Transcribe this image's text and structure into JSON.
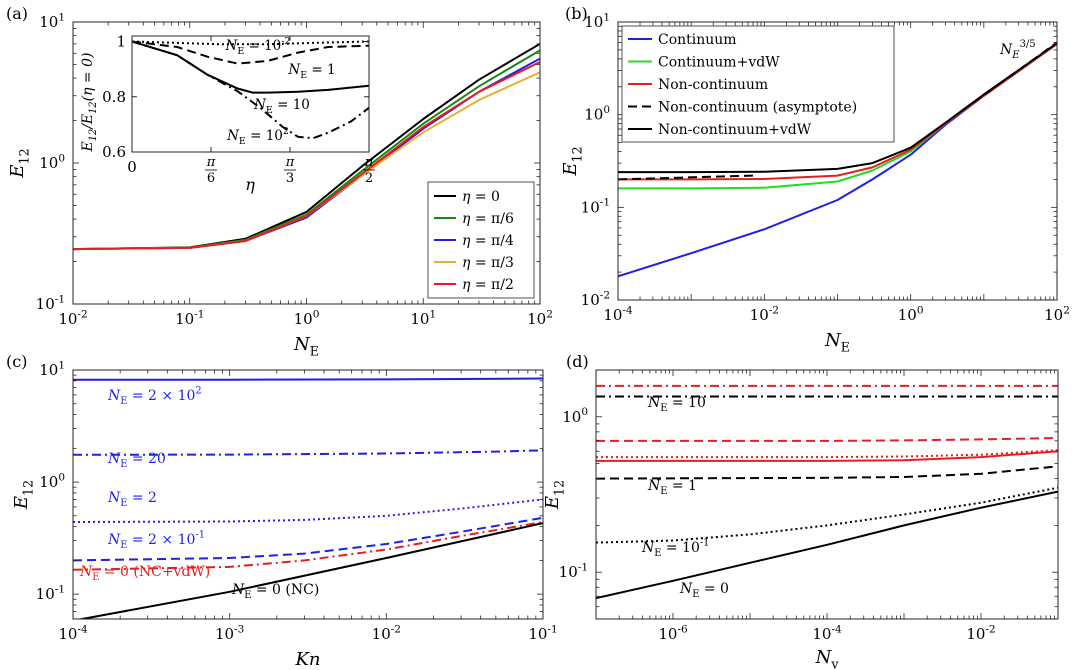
{
  "chart_data": [
    {
      "panel": "(a)",
      "type": "line",
      "xlabel": "N_E",
      "ylabel": "E_12",
      "xscale": "log",
      "yscale": "log",
      "xlim": [
        0.01,
        100
      ],
      "ylim": [
        0.1,
        10
      ],
      "xticks": [
        "10^-2",
        "10^-1",
        "10^0",
        "10^1",
        "10^2"
      ],
      "yticks": [
        "10^-1",
        "10^0",
        "10^1"
      ],
      "legend_position": "bottom-right",
      "series": [
        {
          "name": "η = 0",
          "color": "#000000",
          "style": "solid",
          "x": [
            0.01,
            0.1,
            0.3,
            1,
            3,
            10,
            30,
            100
          ],
          "y": [
            0.245,
            0.252,
            0.29,
            0.45,
            0.95,
            2.05,
            3.9,
            7.0
          ]
        },
        {
          "name": "η = π/6",
          "color": "#138a13",
          "style": "solid",
          "x": [
            0.01,
            0.1,
            0.3,
            1,
            3,
            10,
            30,
            100
          ],
          "y": [
            0.245,
            0.251,
            0.285,
            0.43,
            0.88,
            1.9,
            3.5,
            6.3
          ]
        },
        {
          "name": "η = π/4",
          "color": "#1f1fe8",
          "style": "solid",
          "x": [
            0.01,
            0.1,
            0.3,
            1,
            3,
            10,
            30,
            100
          ],
          "y": [
            0.245,
            0.25,
            0.28,
            0.41,
            0.82,
            1.75,
            3.2,
            5.5
          ]
        },
        {
          "name": "η = π/3",
          "color": "#e8b030",
          "style": "solid",
          "x": [
            0.01,
            0.1,
            0.3,
            1,
            3,
            10,
            30,
            100
          ],
          "y": [
            0.245,
            0.25,
            0.28,
            0.42,
            0.82,
            1.65,
            2.8,
            4.4
          ]
        },
        {
          "name": "η = π/2",
          "color": "#e81e1e",
          "style": "solid",
          "x": [
            0.01,
            0.1,
            0.3,
            1,
            3,
            10,
            30,
            100
          ],
          "y": [
            0.245,
            0.25,
            0.28,
            0.42,
            0.84,
            1.8,
            3.2,
            5.2
          ]
        }
      ],
      "inset": {
        "xlabel": "η",
        "ylabel": "E_12/E_12(η = 0)",
        "xlim": [
          0,
          1.5708
        ],
        "ylim": [
          0.6,
          1.02
        ],
        "xticks": [
          "0",
          "π/6",
          "π/3",
          "π/2"
        ],
        "yticks": [
          "0.6",
          "0.8",
          "1"
        ],
        "series": [
          {
            "name": "N_E = 10^-2",
            "style": "dotted",
            "x": [
              0,
              0.3,
              0.6,
              0.9,
              1.2,
              1.5708
            ],
            "y": [
              1.0,
              0.995,
              0.99,
              0.99,
              0.995,
              1.0
            ]
          },
          {
            "name": "N_E = 1",
            "style": "dashed",
            "x": [
              0,
              0.3,
              0.5,
              0.7,
              0.9,
              1.1,
              1.3,
              1.5708
            ],
            "y": [
              1.0,
              0.98,
              0.945,
              0.92,
              0.93,
              0.96,
              0.98,
              0.985
            ]
          },
          {
            "name": "N_E = 10",
            "style": "solid",
            "x": [
              0,
              0.3,
              0.5,
              0.7,
              0.8,
              0.9,
              1.1,
              1.3,
              1.5708
            ],
            "y": [
              1.0,
              0.95,
              0.88,
              0.83,
              0.815,
              0.815,
              0.818,
              0.825,
              0.84
            ]
          },
          {
            "name": "N_E = 10^2",
            "style": "dashdot",
            "x": [
              0,
              0.3,
              0.5,
              0.7,
              0.85,
              1.0,
              1.1,
              1.2,
              1.3,
              1.45,
              1.5708
            ],
            "y": [
              1.0,
              0.95,
              0.88,
              0.82,
              0.76,
              0.69,
              0.655,
              0.65,
              0.67,
              0.71,
              0.76
            ]
          }
        ],
        "labels": [
          "N_E = 10^-2",
          "N_E = 1",
          "N_E = 10",
          "N_E = 10^2"
        ]
      }
    },
    {
      "panel": "(b)",
      "type": "line",
      "xlabel": "N_E",
      "ylabel": "E_12",
      "xscale": "log",
      "yscale": "log",
      "xlim": [
        0.0001,
        100
      ],
      "ylim": [
        0.01,
        10
      ],
      "xticks": [
        "10^-4",
        "10^-2",
        "10^0",
        "10^2"
      ],
      "yticks": [
        "10^-2",
        "10^-1",
        "10^0",
        "10^1"
      ],
      "legend_position": "top-left",
      "annotation": "N_E^{3/5}",
      "series": [
        {
          "name": "Continuum",
          "color": "#1f1fe8",
          "style": "solid",
          "x": [
            0.0001,
            0.001,
            0.01,
            0.1,
            0.3,
            1,
            3,
            10,
            100
          ],
          "y": [
            0.018,
            0.032,
            0.058,
            0.12,
            0.2,
            0.37,
            0.78,
            1.6,
            5.8
          ]
        },
        {
          "name": "Continuum+vdW",
          "color": "#22dd22",
          "style": "solid",
          "x": [
            0.0001,
            0.001,
            0.01,
            0.1,
            0.3,
            1,
            3,
            10,
            100
          ],
          "y": [
            0.16,
            0.16,
            0.163,
            0.19,
            0.25,
            0.4,
            0.8,
            1.6,
            5.8
          ]
        },
        {
          "name": "Non-continuum",
          "color": "#e81e1e",
          "style": "solid",
          "x": [
            0.0001,
            0.001,
            0.01,
            0.1,
            0.3,
            1,
            3,
            10,
            100
          ],
          "y": [
            0.2,
            0.2,
            0.202,
            0.22,
            0.27,
            0.42,
            0.8,
            1.6,
            5.8
          ]
        },
        {
          "name": "Non-continuum (asymptote)",
          "color": "#000000",
          "style": "dashed",
          "x": [
            0.0001,
            0.007
          ],
          "y": [
            0.2,
            0.22
          ],
          "x2": [
            5,
            100
          ],
          "y2": [
            1.1,
            6.0
          ]
        },
        {
          "name": "Non-continuum+vdW",
          "color": "#000000",
          "style": "solid",
          "x": [
            0.0001,
            0.001,
            0.01,
            0.1,
            0.3,
            1,
            3,
            10,
            100
          ],
          "y": [
            0.24,
            0.24,
            0.242,
            0.26,
            0.3,
            0.44,
            0.82,
            1.65,
            5.9
          ]
        }
      ]
    },
    {
      "panel": "(c)",
      "type": "line",
      "xlabel": "Kn",
      "ylabel": "E_12",
      "xscale": "log",
      "yscale": "log",
      "xlim": [
        0.0001,
        0.1
      ],
      "ylim": [
        0.06,
        10
      ],
      "xticks": [
        "10^-4",
        "10^-3",
        "10^-2",
        "10^-1"
      ],
      "yticks": [
        "10^-1",
        "10^0",
        "10^1"
      ],
      "series": [
        {
          "name": "N_E = 2 × 10^2",
          "color": "#1f1fe8",
          "style": "solid",
          "x": [
            0.0001,
            0.001,
            0.01,
            0.1
          ],
          "y": [
            8.2,
            8.2,
            8.25,
            8.4
          ]
        },
        {
          "name": "N_E = 20",
          "color": "#1f1fe8",
          "style": "dashdot",
          "x": [
            0.0001,
            0.001,
            0.01,
            0.05,
            0.1
          ],
          "y": [
            1.75,
            1.76,
            1.8,
            1.87,
            1.92
          ]
        },
        {
          "name": "N_E = 2",
          "color": "#1f1fe8",
          "style": "dotted",
          "x": [
            0.0001,
            0.001,
            0.003,
            0.01,
            0.03,
            0.1
          ],
          "y": [
            0.44,
            0.445,
            0.46,
            0.5,
            0.58,
            0.7
          ]
        },
        {
          "name": "N_E = 2 × 10^-1",
          "color": "#1f1fe8",
          "style": "dashed",
          "x": [
            0.0001,
            0.001,
            0.003,
            0.01,
            0.03,
            0.1
          ],
          "y": [
            0.2,
            0.21,
            0.23,
            0.28,
            0.36,
            0.48
          ]
        },
        {
          "name": "N_E = 0 (NC+vdW)",
          "color": "#e81e1e",
          "style": "dashdot",
          "x": [
            0.0001,
            0.001,
            0.003,
            0.01,
            0.03,
            0.1
          ],
          "y": [
            0.165,
            0.175,
            0.2,
            0.25,
            0.33,
            0.44
          ]
        },
        {
          "name": "N_E = 0 (NC)",
          "color": "#000000",
          "style": "solid",
          "x": [
            0.0001,
            0.001,
            0.01,
            0.1
          ],
          "y": [
            0.058,
            0.105,
            0.21,
            0.43
          ]
        }
      ],
      "labels": [
        "N_E = 2 × 10^2",
        "N_E = 20",
        "N_E = 2",
        "N_E = 2 × 10^-1",
        "N_E = 0 (NC+vdW)",
        "N_E = 0 (NC)"
      ]
    },
    {
      "panel": "(d)",
      "type": "line",
      "xlabel": "N_v",
      "ylabel": "E_12",
      "xscale": "log",
      "yscale": "log",
      "xlim": [
        1e-07,
        0.1
      ],
      "ylim": [
        0.05,
        2
      ],
      "xticks": [
        "10^-6",
        "10^-4",
        "10^-2"
      ],
      "yticks": [
        "10^-1",
        "10^0"
      ],
      "series": [
        {
          "name": "N_E = 10 (NC)",
          "color": "#000000",
          "style": "dashdot",
          "x": [
            1e-07,
            0.1
          ],
          "y": [
            1.35,
            1.35
          ]
        },
        {
          "name": "N_E = 10 (NC+vdW)",
          "color": "#e81e1e",
          "style": "dashdot",
          "x": [
            1e-07,
            0.1
          ],
          "y": [
            1.58,
            1.58
          ]
        },
        {
          "name": "N_E = 1 (NC+vdW)",
          "color": "#e81e1e",
          "style": "dashed",
          "x": [
            1e-07,
            0.0001,
            0.001,
            0.01,
            0.1
          ],
          "y": [
            0.7,
            0.7,
            0.705,
            0.715,
            0.73
          ]
        },
        {
          "name": "N_E = 10^-1 (NC+vdW)",
          "color": "#e81e1e",
          "style": "dotted",
          "x": [
            1e-07,
            0.0001,
            0.001,
            0.01,
            0.1
          ],
          "y": [
            0.55,
            0.55,
            0.555,
            0.57,
            0.61
          ]
        },
        {
          "name": "N_E = 0 (NC+vdW)",
          "color": "#e81e1e",
          "style": "solid",
          "x": [
            1e-07,
            0.0001,
            0.001,
            0.01,
            0.1
          ],
          "y": [
            0.52,
            0.52,
            0.525,
            0.55,
            0.6
          ]
        },
        {
          "name": "N_E = 1 (NC)",
          "color": "#000000",
          "style": "dashed",
          "x": [
            1e-07,
            0.0001,
            0.001,
            0.01,
            0.1
          ],
          "y": [
            0.4,
            0.405,
            0.41,
            0.43,
            0.48
          ]
        },
        {
          "name": "N_E = 10^-1 (NC)",
          "color": "#000000",
          "style": "dotted",
          "x": [
            1e-07,
            1e-06,
            1e-05,
            0.0001,
            0.001,
            0.01,
            0.1
          ],
          "y": [
            0.155,
            0.16,
            0.175,
            0.2,
            0.235,
            0.28,
            0.35
          ]
        },
        {
          "name": "N_E = 0 (NC)",
          "color": "#000000",
          "style": "solid",
          "x": [
            1e-07,
            1e-06,
            1e-05,
            0.0001,
            0.001,
            0.01,
            0.1
          ],
          "y": [
            0.068,
            0.088,
            0.115,
            0.15,
            0.2,
            0.26,
            0.33
          ]
        }
      ],
      "labels": [
        "N_E = 10",
        "N_E = 1",
        "N_E = 10^-1",
        "N_E = 0"
      ]
    }
  ]
}
